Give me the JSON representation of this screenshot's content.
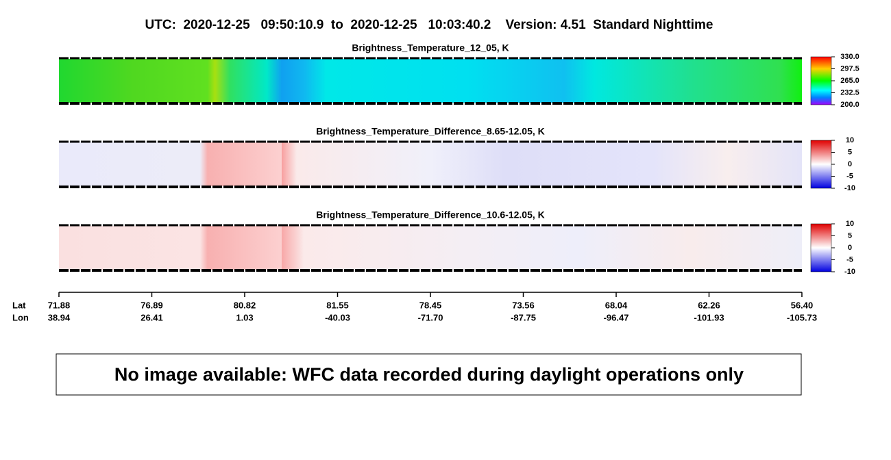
{
  "header": {
    "title": "UTC:  2020-12-25   09:50:10.9  to  2020-12-25   10:03:40.2    Version: 4.51  Standard Nighttime"
  },
  "panels": [
    {
      "title": "Brightness_Temperature_12_05, K",
      "colorbar": {
        "ticks": [
          "330.0",
          "297.5",
          "265.0",
          "232.5",
          "200.0"
        ]
      }
    },
    {
      "title": "Brightness_Temperature_Difference_8.65-12.05, K",
      "colorbar": {
        "ticks": [
          "10",
          "5",
          "0",
          "-5",
          "-10"
        ]
      }
    },
    {
      "title": "Brightness_Temperature_Difference_10.6-12.05, K",
      "colorbar": {
        "ticks": [
          "10",
          "5",
          "0",
          "-5",
          "-10"
        ]
      }
    }
  ],
  "axis": {
    "lat_label": "Lat",
    "lon_label": "Lon",
    "lat": [
      "71.88",
      "76.89",
      "80.82",
      "81.55",
      "78.45",
      "73.56",
      "68.04",
      "62.26",
      "56.40"
    ],
    "lon": [
      "38.94",
      "26.41",
      "1.03",
      "-40.03",
      "-71.70",
      "-87.75",
      "-96.47",
      "-101.93",
      "-105.73"
    ]
  },
  "message": "No image available: WFC data recorded during daylight operations only"
}
